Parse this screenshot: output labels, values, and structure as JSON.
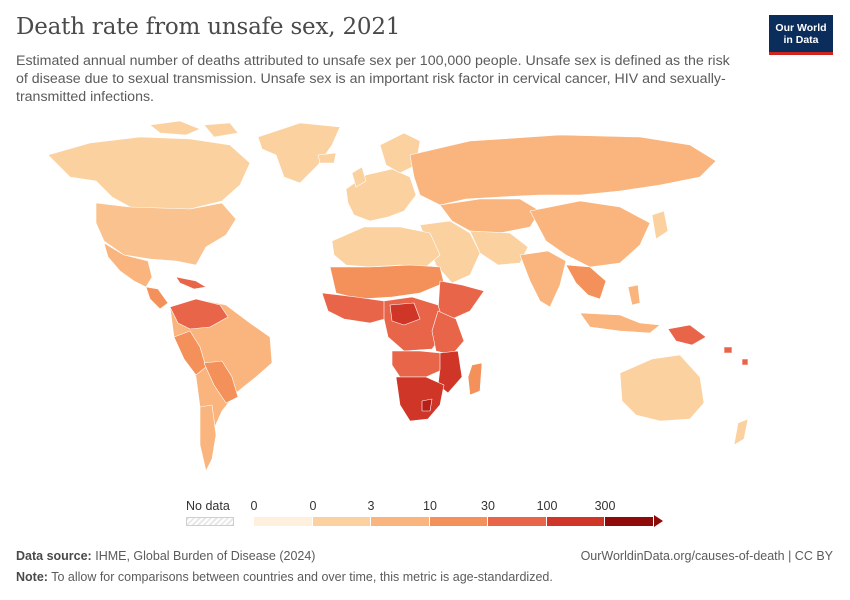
{
  "header": {
    "title": "Death rate from unsafe sex, 2021",
    "subtitle": "Estimated annual number of deaths attributed to unsafe sex per 100,000 people. Unsafe sex is defined as the risk of disease due to sexual transmission. Unsafe sex is an important risk factor in cervical cancer, HIV and sexually-transmitted infections.",
    "logo_line1": "Our World",
    "logo_line2": "in Data"
  },
  "legend": {
    "no_data_label": "No data",
    "ticks": [
      "0",
      "0",
      "3",
      "10",
      "30",
      "100",
      "300"
    ],
    "colors": [
      "#fef0dc",
      "#fbd1a0",
      "#f9b57d",
      "#f4915a",
      "#e9654a",
      "#d03627",
      "#8e0b0a"
    ]
  },
  "footer": {
    "source_label": "Data source:",
    "source_text": "IHME, Global Burden of Disease (2024)",
    "url_text": "OurWorldinData.org/causes-of-death | CC BY",
    "note_label": "Note:",
    "note_text": "To allow for comparisons between countries and over time, this metric is age-standardized."
  },
  "map_colors": {
    "ocean": "#ffffff",
    "border": "#ffffff",
    "low": "#fbd1a0",
    "low_mid": "#f9b57d",
    "mid": "#f4915a",
    "high": "#e9654a",
    "very_high": "#d03627",
    "extreme": "#b81f17"
  }
}
